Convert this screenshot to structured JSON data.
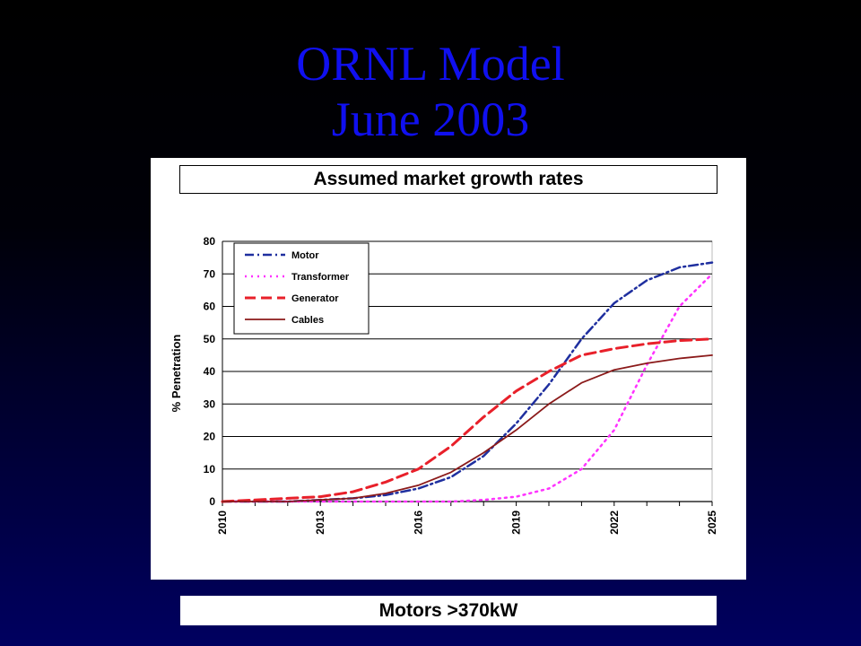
{
  "slide": {
    "title_line1": "ORNL Model",
    "title_line2": "June 2003",
    "header": "Assumed market growth rates",
    "footer": "Motors >370kW"
  },
  "chart_data": {
    "type": "line",
    "title": "",
    "xlabel": "",
    "ylabel": "% Penetration",
    "xlim": [
      2010,
      2025
    ],
    "ylim": [
      0,
      80
    ],
    "yticks": [
      0,
      10,
      20,
      30,
      40,
      50,
      60,
      70,
      80
    ],
    "xticks": [
      2010,
      2013,
      2016,
      2019,
      2022,
      2025
    ],
    "grid": "horizontal",
    "legend_position": "top-left",
    "series": [
      {
        "name": "Motor",
        "color": "#1f2f9f",
        "dash": "dash-dot",
        "x": [
          2010,
          2011,
          2012,
          2013,
          2014,
          2015,
          2016,
          2017,
          2018,
          2019,
          2020,
          2021,
          2022,
          2023,
          2024,
          2025
        ],
        "y": [
          0,
          0,
          0,
          0.5,
          1,
          2,
          4,
          7.5,
          14,
          24,
          36,
          50,
          61,
          68,
          72,
          73.5
        ]
      },
      {
        "name": "Transformer",
        "color": "#ff33ff",
        "dash": "dot",
        "x": [
          2010,
          2011,
          2012,
          2013,
          2014,
          2015,
          2016,
          2017,
          2018,
          2019,
          2020,
          2021,
          2022,
          2023,
          2024,
          2025
        ],
        "y": [
          0,
          0,
          0,
          0,
          0,
          0,
          0,
          0,
          0.5,
          1.5,
          4,
          10,
          22,
          42,
          60,
          70
        ]
      },
      {
        "name": "Generator",
        "color": "#e8202a",
        "dash": "dash",
        "x": [
          2010,
          2011,
          2012,
          2013,
          2014,
          2015,
          2016,
          2017,
          2018,
          2019,
          2020,
          2021,
          2022,
          2023,
          2024,
          2025
        ],
        "y": [
          0,
          0.5,
          1,
          1.5,
          3,
          6,
          10,
          17,
          26,
          34,
          40,
          45,
          47,
          48.5,
          49.5,
          50
        ]
      },
      {
        "name": "Cables",
        "color": "#8b1a1a",
        "dash": "solid",
        "x": [
          2010,
          2011,
          2012,
          2013,
          2014,
          2015,
          2016,
          2017,
          2018,
          2019,
          2020,
          2021,
          2022,
          2023,
          2024,
          2025
        ],
        "y": [
          0,
          0,
          0,
          0.5,
          1,
          2.5,
          5,
          9,
          15,
          22,
          30,
          36.5,
          40.5,
          42.5,
          44,
          45
        ]
      }
    ]
  }
}
